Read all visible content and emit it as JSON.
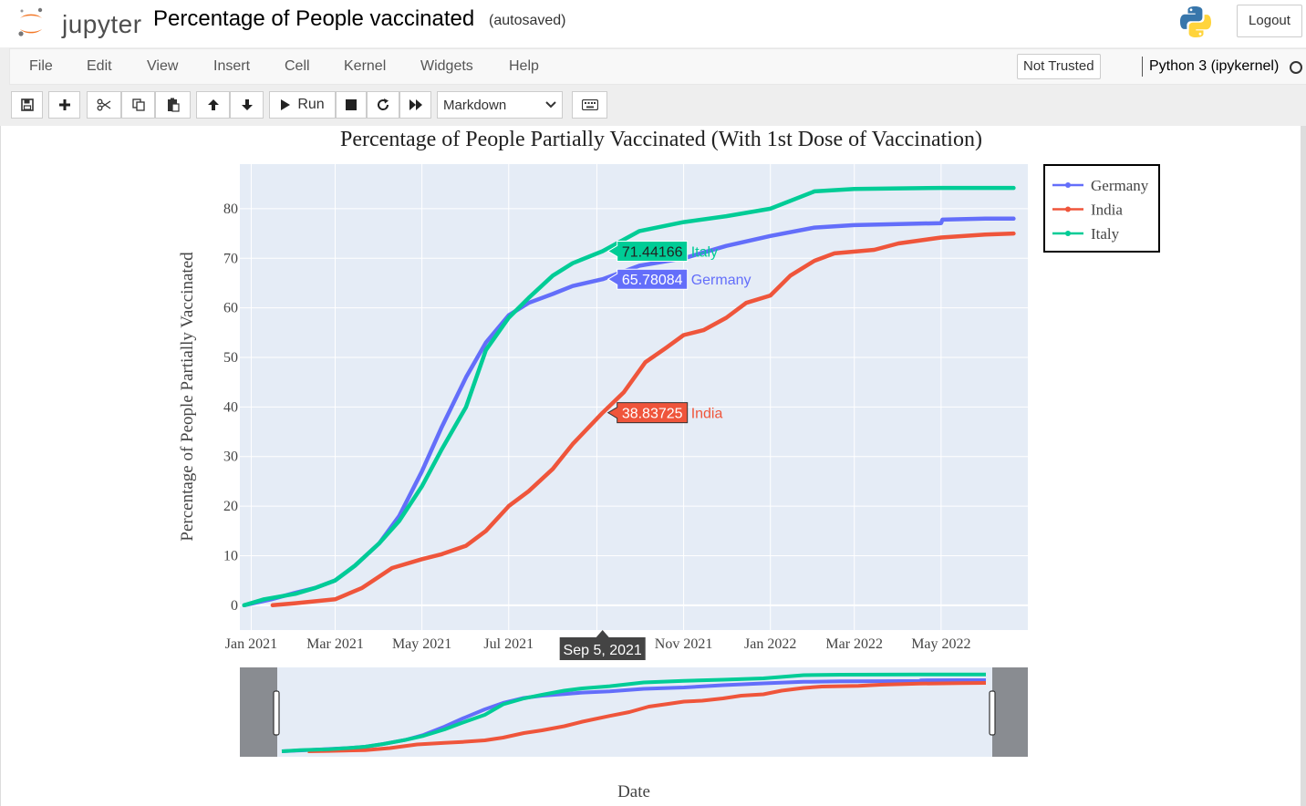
{
  "header": {
    "logo_text": "jupyter",
    "notebook_title": "Percentage of People vaccinated",
    "autosave_status": "(autosaved)",
    "logout_label": "Logout"
  },
  "menubar": {
    "items": [
      "File",
      "Edit",
      "View",
      "Insert",
      "Cell",
      "Kernel",
      "Widgets",
      "Help"
    ],
    "trust_status": "Not Trusted",
    "kernel_name": "Python 3 (ipykernel)"
  },
  "toolbar": {
    "run_label": "Run",
    "cell_type": "Markdown",
    "buttons": [
      "save-icon",
      "plus-icon",
      "cut-icon",
      "copy-icon",
      "paste-icon",
      "arrow-up-icon",
      "arrow-down-icon",
      "run-icon",
      "stop-icon",
      "restart-icon",
      "fast-forward-icon",
      "keyboard-icon"
    ]
  },
  "chart_data": {
    "type": "line",
    "title": "Percentage of People Partially Vaccinated (With 1st Dose of Vaccination)",
    "xlabel": "Date",
    "ylabel": "Percentage of People Partially Vaccinated",
    "x_ticks": [
      "Jan 2021",
      "Mar 2021",
      "May 2021",
      "Jul 2021",
      "Sep 2021",
      "Nov 2021",
      "Jan 2022",
      "Mar 2022",
      "May 2022"
    ],
    "y_ticks": [
      "0",
      "10",
      "20",
      "30",
      "40",
      "50",
      "60",
      "70",
      "80"
    ],
    "ylim": [
      -5,
      89
    ],
    "xlim": [
      "2020-12-24",
      "2022-07-01"
    ],
    "legend_position": "top-right outside plot",
    "background": "#e5ecf6",
    "series": [
      {
        "name": "Germany",
        "color": "#636efa",
        "points": [
          [
            "2020-12-27",
            0.0
          ],
          [
            "2021-01-15",
            1.2
          ],
          [
            "2021-02-01",
            2.5
          ],
          [
            "2021-02-15",
            3.5
          ],
          [
            "2021-03-01",
            5.0
          ],
          [
            "2021-03-15",
            8.0
          ],
          [
            "2021-04-01",
            12.5
          ],
          [
            "2021-04-15",
            18.0
          ],
          [
            "2021-05-01",
            27.0
          ],
          [
            "2021-05-15",
            36.0
          ],
          [
            "2021-06-01",
            46.0
          ],
          [
            "2021-06-15",
            53.0
          ],
          [
            "2021-07-01",
            58.5
          ],
          [
            "2021-07-15",
            61.0
          ],
          [
            "2021-08-01",
            62.8
          ],
          [
            "2021-08-15",
            64.4
          ],
          [
            "2021-09-05",
            65.78
          ],
          [
            "2021-10-01",
            68.5
          ],
          [
            "2021-11-01",
            70.0
          ],
          [
            "2021-12-01",
            72.5
          ],
          [
            "2022-01-01",
            74.5
          ],
          [
            "2022-02-01",
            76.2
          ],
          [
            "2022-03-01",
            76.7
          ],
          [
            "2022-04-01",
            76.9
          ],
          [
            "2022-05-01",
            77.1
          ],
          [
            "2022-05-02",
            77.8
          ],
          [
            "2022-06-01",
            78.0
          ],
          [
            "2022-06-21",
            78.0
          ]
        ]
      },
      {
        "name": "India",
        "color": "#ef553b",
        "points": [
          [
            "2021-01-16",
            0.0
          ],
          [
            "2021-02-01",
            0.4
          ],
          [
            "2021-03-01",
            1.2
          ],
          [
            "2021-03-20",
            3.5
          ],
          [
            "2021-04-10",
            7.5
          ],
          [
            "2021-05-01",
            9.3
          ],
          [
            "2021-05-15",
            10.3
          ],
          [
            "2021-06-01",
            12.0
          ],
          [
            "2021-06-15",
            15.0
          ],
          [
            "2021-07-01",
            20.0
          ],
          [
            "2021-07-15",
            23.0
          ],
          [
            "2021-08-01",
            27.5
          ],
          [
            "2021-08-15",
            32.5
          ],
          [
            "2021-09-05",
            38.84
          ],
          [
            "2021-09-20",
            43.0
          ],
          [
            "2021-10-05",
            49.0
          ],
          [
            "2021-10-20",
            52.0
          ],
          [
            "2021-11-01",
            54.5
          ],
          [
            "2021-11-15",
            55.5
          ],
          [
            "2021-12-01",
            58.0
          ],
          [
            "2021-12-15",
            61.0
          ],
          [
            "2022-01-01",
            62.5
          ],
          [
            "2022-01-15",
            66.5
          ],
          [
            "2022-02-01",
            69.5
          ],
          [
            "2022-02-15",
            71.0
          ],
          [
            "2022-03-15",
            71.7
          ],
          [
            "2022-04-01",
            73.0
          ],
          [
            "2022-05-01",
            74.2
          ],
          [
            "2022-06-01",
            74.8
          ],
          [
            "2022-06-21",
            75.0
          ]
        ]
      },
      {
        "name": "Italy",
        "color": "#00cc96",
        "points": [
          [
            "2020-12-27",
            0.0
          ],
          [
            "2021-01-10",
            1.2
          ],
          [
            "2021-02-01",
            2.3
          ],
          [
            "2021-02-15",
            3.5
          ],
          [
            "2021-03-01",
            5.0
          ],
          [
            "2021-03-15",
            8.0
          ],
          [
            "2021-04-01",
            12.5
          ],
          [
            "2021-04-15",
            17.0
          ],
          [
            "2021-05-01",
            24.0
          ],
          [
            "2021-05-15",
            31.5
          ],
          [
            "2021-06-01",
            40.0
          ],
          [
            "2021-06-15",
            51.5
          ],
          [
            "2021-07-01",
            58.0
          ],
          [
            "2021-07-15",
            62.0
          ],
          [
            "2021-08-01",
            66.5
          ],
          [
            "2021-08-15",
            69.0
          ],
          [
            "2021-09-05",
            71.44
          ],
          [
            "2021-10-01",
            75.5
          ],
          [
            "2021-11-01",
            77.3
          ],
          [
            "2021-12-01",
            78.5
          ],
          [
            "2022-01-01",
            80.0
          ],
          [
            "2022-02-01",
            83.5
          ],
          [
            "2022-03-01",
            84.0
          ],
          [
            "2022-04-01",
            84.1
          ],
          [
            "2022-05-01",
            84.2
          ],
          [
            "2022-06-21",
            84.2
          ]
        ]
      }
    ],
    "hover": {
      "date_label": "Sep 5, 2021",
      "date": "2021-09-05",
      "labels": [
        {
          "series": "Italy",
          "value": "71.44166"
        },
        {
          "series": "Germany",
          "value": "65.78084"
        },
        {
          "series": "India",
          "value": "38.83725"
        }
      ]
    },
    "rangeslider": {
      "visible": true
    }
  }
}
